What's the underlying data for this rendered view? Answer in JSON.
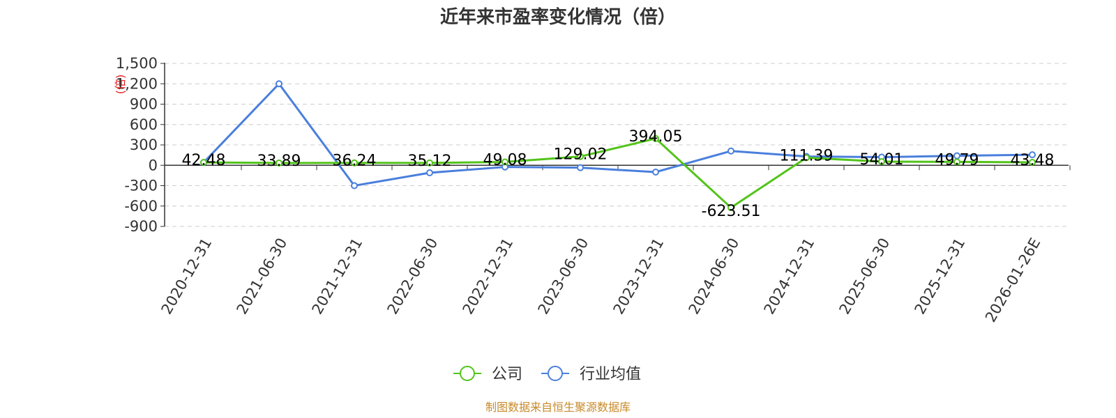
{
  "chart_data": {
    "type": "line",
    "title": "近年来市盈率变化情况（倍）",
    "ylabel": "(倍)",
    "xlabel": "",
    "categories": [
      "2020-12-31",
      "2021-06-30",
      "2021-12-31",
      "2022-06-30",
      "2022-12-31",
      "2023-06-30",
      "2023-12-31",
      "2024-06-30",
      "2024-12-31",
      "2025-06-30",
      "2025-12-31",
      "2026-01-26E"
    ],
    "ylim": [
      -900,
      1500
    ],
    "yticks": [
      1500,
      1200,
      900,
      600,
      300,
      0,
      -300,
      -600,
      -900
    ],
    "ytick_labels": [
      "1,500",
      "1,200",
      "900",
      "600",
      "300",
      "0",
      "-300",
      "-600",
      "-900"
    ],
    "grid": true,
    "legend_position": "bottom-center",
    "series": [
      {
        "name": "公司",
        "color": "#52c41a",
        "values": [
          42.48,
          33.89,
          36.24,
          35.12,
          49.08,
          129.02,
          394.05,
          -623.51,
          111.39,
          54.01,
          49.79,
          43.48
        ],
        "labels": [
          "42.48",
          "33.89",
          "36.24",
          "35.12",
          "49.08",
          "129.02",
          "394.05",
          "-623.51",
          "111.39",
          "54.01",
          "49.79",
          "43.48"
        ]
      },
      {
        "name": "行业均值",
        "color": "#4a7fdc",
        "values": [
          42,
          1200,
          -300,
          -110,
          -25,
          -35,
          -100,
          210,
          130,
          120,
          140,
          155
        ]
      }
    ]
  },
  "legend": {
    "company": "公司",
    "industry": "行业均值"
  },
  "source": "制图数据来自恒生聚源数据库"
}
